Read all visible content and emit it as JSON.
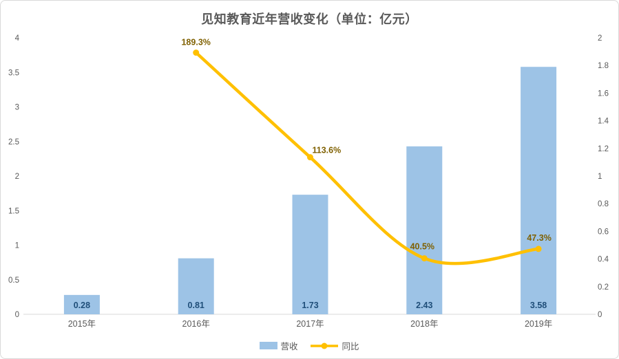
{
  "title": "见知教育近年营收变化（单位：亿元）",
  "legend": {
    "revenue_label": "营收",
    "yoy_label": "同比"
  },
  "colors": {
    "bar": "#9DC3E6",
    "line": "#FFC000",
    "bar_label": "#1F4E79",
    "line_label": "#7F6000",
    "axis_text": "#595959",
    "axis_line": "#D9D9D9",
    "title_text": "#595959"
  },
  "chart_data": {
    "type": "combo",
    "title": "见知教育近年营收变化（单位：亿元）",
    "categories": [
      "2015年",
      "2016年",
      "2017年",
      "2018年",
      "2019年"
    ],
    "series": [
      {
        "name": "营收",
        "type": "bar",
        "axis": "left",
        "values": [
          0.28,
          0.81,
          1.73,
          2.43,
          3.58
        ],
        "labels": [
          "0.28",
          "0.81",
          "1.73",
          "2.43",
          "3.58"
        ],
        "color": "#9DC3E6"
      },
      {
        "name": "同比",
        "type": "line",
        "axis": "right",
        "values": [
          null,
          1.893,
          1.136,
          0.405,
          0.473
        ],
        "labels": [
          null,
          "189.3%",
          "113.6%",
          "40.5%",
          "47.3%"
        ],
        "color": "#FFC000"
      }
    ],
    "left_axis": {
      "min": 0,
      "max": 4,
      "step": 0.5,
      "ticks": [
        "0",
        "0.5",
        "1",
        "1.5",
        "2",
        "2.5",
        "3",
        "3.5",
        "4"
      ]
    },
    "right_axis": {
      "min": 0,
      "max": 2,
      "step": 0.2,
      "ticks": [
        "0",
        "0.2",
        "0.4",
        "0.6",
        "0.8",
        "1",
        "1.2",
        "1.4",
        "1.6",
        "1.8",
        "2"
      ]
    },
    "grid": false,
    "legend_position": "bottom"
  }
}
